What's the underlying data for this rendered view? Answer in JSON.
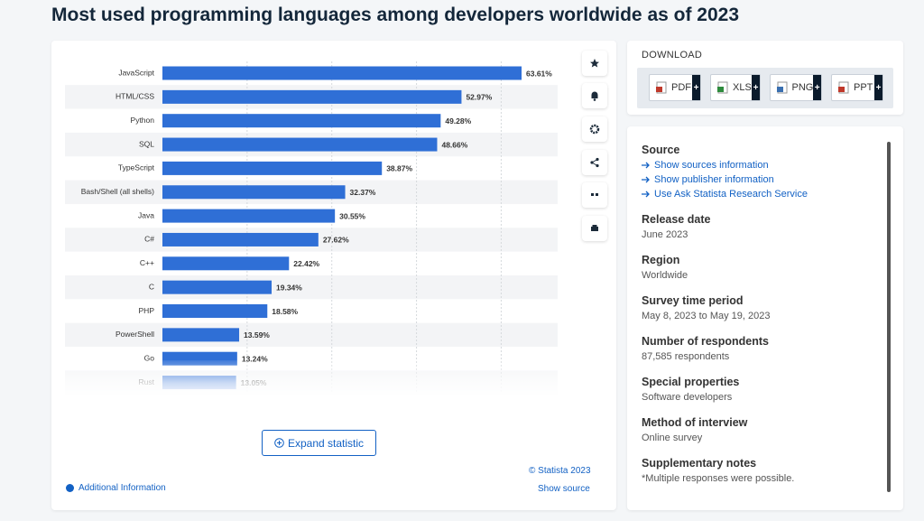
{
  "page_title": "Most used programming languages among developers worldwide as of 2023",
  "chart_data": {
    "type": "bar",
    "orientation": "horizontal",
    "categories": [
      "JavaScript",
      "HTML/CSS",
      "Python",
      "SQL",
      "TypeScript",
      "Bash/Shell (all shells)",
      "Java",
      "C#",
      "C++",
      "C",
      "PHP",
      "PowerShell",
      "Go",
      "Rust"
    ],
    "values": [
      63.61,
      52.97,
      49.28,
      48.66,
      38.87,
      32.37,
      30.55,
      27.62,
      22.42,
      19.34,
      18.58,
      13.59,
      13.24,
      13.05
    ],
    "value_labels": [
      "63.61%",
      "52.97%",
      "49.28%",
      "48.66%",
      "38.87%",
      "32.37%",
      "30.55%",
      "27.62%",
      "22.42%",
      "19.34%",
      "18.58%",
      "13.59%",
      "13.24%",
      "13.05%"
    ],
    "color": "#2f6fd6",
    "xlim": [
      0,
      70
    ],
    "xticks": [
      15,
      30,
      45,
      60
    ],
    "grid": true
  },
  "chart_footer": {
    "expand": "Expand statistic",
    "copyright": "© Statista 2023",
    "show_source": "Show source",
    "additional_info": "Additional Information"
  },
  "download": {
    "title": "DOWNLOAD",
    "formats": [
      "PDF",
      "XLS",
      "PNG",
      "PPT"
    ],
    "add": "+"
  },
  "info": {
    "source_heading": "Source",
    "source_links": [
      "Show sources information",
      "Show publisher information",
      "Use Ask Statista Research Service"
    ],
    "details": [
      {
        "heading": "Release date",
        "value": "June 2023"
      },
      {
        "heading": "Region",
        "value": "Worldwide"
      },
      {
        "heading": "Survey time period",
        "value": "May 8, 2023 to May 19, 2023"
      },
      {
        "heading": "Number of respondents",
        "value": "87,585 respondents"
      },
      {
        "heading": "Special properties",
        "value": "Software developers"
      },
      {
        "heading": "Method of interview",
        "value": "Online survey"
      },
      {
        "heading": "Supplementary notes",
        "value": "*Multiple responses were possible."
      }
    ]
  }
}
